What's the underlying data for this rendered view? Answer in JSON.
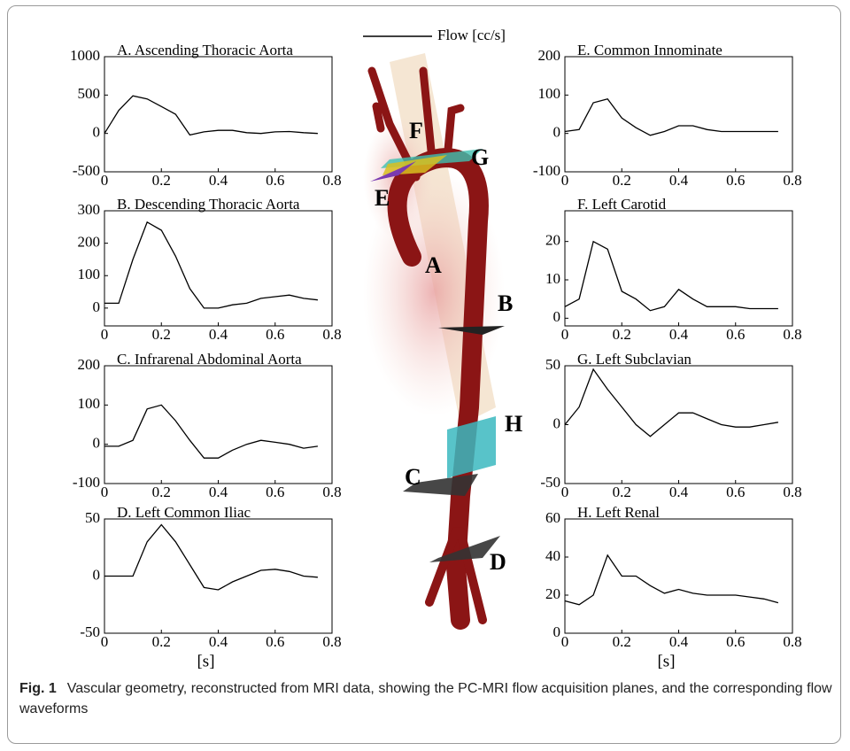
{
  "legend": {
    "label": "Flow [cc/s]",
    "color": "#000000"
  },
  "image_labels": [
    "A",
    "B",
    "C",
    "D",
    "E",
    "F",
    "G",
    "H"
  ],
  "caption": {
    "label": "Fig. 1",
    "text": "Vascular geometry, reconstructed from MRI data, showing the PC-MRI flow acquisition planes, and the corresponding flow waveforms"
  },
  "chart_data": [
    {
      "type": "line",
      "title": "A. Ascending Thoracic Aorta",
      "x": [
        0,
        0.05,
        0.1,
        0.15,
        0.2,
        0.25,
        0.3,
        0.35,
        0.4,
        0.45,
        0.5,
        0.55,
        0.6,
        0.65,
        0.7,
        0.75
      ],
      "series": [
        {
          "color": "#000000",
          "values": [
            0,
            300,
            490,
            450,
            350,
            250,
            -20,
            20,
            40,
            40,
            10,
            0,
            20,
            25,
            10,
            0
          ]
        }
      ],
      "xlim": [
        0,
        0.8
      ],
      "xticks": [
        0,
        0.2,
        0.4,
        0.6,
        0.8
      ],
      "ylim": [
        -500,
        1000
      ],
      "yticks": [
        -500,
        0,
        500,
        1000
      ]
    },
    {
      "type": "line",
      "title": "B. Descending Thoracic Aorta",
      "x": [
        0,
        0.05,
        0.1,
        0.15,
        0.2,
        0.25,
        0.3,
        0.35,
        0.4,
        0.45,
        0.5,
        0.55,
        0.6,
        0.65,
        0.7,
        0.75
      ],
      "series": [
        {
          "color": "#000000",
          "values": [
            15,
            15,
            150,
            265,
            240,
            160,
            60,
            0,
            0,
            10,
            15,
            30,
            35,
            40,
            30,
            25
          ]
        }
      ],
      "xlim": [
        0,
        0.8
      ],
      "xticks": [
        0,
        0.2,
        0.4,
        0.6,
        0.8
      ],
      "ylim": [
        -55,
        300
      ],
      "yticks": [
        0,
        100,
        200,
        300
      ]
    },
    {
      "type": "line",
      "title": "C. Infrarenal Abdominal Aorta",
      "x": [
        0,
        0.05,
        0.1,
        0.15,
        0.2,
        0.25,
        0.3,
        0.35,
        0.4,
        0.45,
        0.5,
        0.55,
        0.6,
        0.65,
        0.7,
        0.75
      ],
      "series": [
        {
          "color": "#000000",
          "values": [
            -5,
            -5,
            10,
            90,
            100,
            60,
            10,
            -35,
            -35,
            -15,
            0,
            10,
            5,
            0,
            -10,
            -5
          ]
        }
      ],
      "xlim": [
        0,
        0.8
      ],
      "xticks": [
        0,
        0.2,
        0.4,
        0.6,
        0.8
      ],
      "ylim": [
        -100,
        200
      ],
      "yticks": [
        -100,
        0,
        100,
        200
      ]
    },
    {
      "type": "line",
      "title": "D. Left Common Iliac",
      "xlabel": "[s]",
      "x": [
        0,
        0.05,
        0.1,
        0.15,
        0.2,
        0.25,
        0.3,
        0.35,
        0.4,
        0.45,
        0.5,
        0.55,
        0.6,
        0.65,
        0.7,
        0.75
      ],
      "series": [
        {
          "color": "#000000",
          "values": [
            0,
            0,
            0,
            30,
            45,
            30,
            10,
            -10,
            -12,
            -5,
            0,
            5,
            6,
            4,
            0,
            -1
          ]
        }
      ],
      "xlim": [
        0,
        0.8
      ],
      "xticks": [
        0,
        0.2,
        0.4,
        0.6,
        0.8
      ],
      "ylim": [
        -50,
        50
      ],
      "yticks": [
        -50,
        0,
        50
      ]
    },
    {
      "type": "line",
      "title": "E. Common Innominate",
      "x": [
        0,
        0.05,
        0.1,
        0.15,
        0.2,
        0.25,
        0.3,
        0.35,
        0.4,
        0.45,
        0.5,
        0.55,
        0.6,
        0.65,
        0.7,
        0.75
      ],
      "series": [
        {
          "color": "#000000",
          "values": [
            5,
            10,
            80,
            90,
            40,
            15,
            -5,
            5,
            20,
            20,
            10,
            5,
            5,
            5,
            5,
            5
          ]
        }
      ],
      "xlim": [
        0,
        0.8
      ],
      "xticks": [
        0,
        0.2,
        0.4,
        0.6,
        0.8
      ],
      "ylim": [
        -100,
        200
      ],
      "yticks": [
        -100,
        0,
        100,
        200
      ]
    },
    {
      "type": "line",
      "title": "F. Left Carotid",
      "x": [
        0,
        0.05,
        0.1,
        0.15,
        0.2,
        0.25,
        0.3,
        0.35,
        0.4,
        0.45,
        0.5,
        0.55,
        0.6,
        0.65,
        0.7,
        0.75
      ],
      "series": [
        {
          "color": "#000000",
          "values": [
            3,
            5,
            20,
            18,
            7,
            5,
            2,
            3,
            7.5,
            5,
            3,
            3,
            3,
            2.5,
            2.5,
            2.5
          ]
        }
      ],
      "xlim": [
        0,
        0.8
      ],
      "xticks": [
        0,
        0.2,
        0.4,
        0.6,
        0.8
      ],
      "ylim": [
        -2,
        28
      ],
      "yticks": [
        0,
        10,
        20
      ]
    },
    {
      "type": "line",
      "title": "G. Left Subclavian",
      "x": [
        0,
        0.05,
        0.1,
        0.15,
        0.2,
        0.25,
        0.3,
        0.35,
        0.4,
        0.45,
        0.5,
        0.55,
        0.6,
        0.65,
        0.7,
        0.75
      ],
      "series": [
        {
          "color": "#000000",
          "values": [
            0,
            15,
            47,
            30,
            15,
            0,
            -10,
            0,
            10,
            10,
            5,
            0,
            -2,
            -2,
            0,
            2
          ]
        }
      ],
      "xlim": [
        0,
        0.8
      ],
      "xticks": [
        0,
        0.2,
        0.4,
        0.6,
        0.8
      ],
      "ylim": [
        -50,
        50
      ],
      "yticks": [
        -50,
        0,
        50
      ]
    },
    {
      "type": "line",
      "title": "H. Left Renal",
      "xlabel": "[s]",
      "x": [
        0,
        0.05,
        0.1,
        0.15,
        0.2,
        0.25,
        0.3,
        0.35,
        0.4,
        0.45,
        0.5,
        0.55,
        0.6,
        0.65,
        0.7,
        0.75
      ],
      "series": [
        {
          "color": "#000000",
          "values": [
            17,
            15,
            20,
            41,
            30,
            30,
            25,
            21,
            23,
            21,
            20,
            20,
            20,
            19,
            18,
            16
          ]
        }
      ],
      "xlim": [
        0,
        0.8
      ],
      "xticks": [
        0,
        0.2,
        0.4,
        0.6,
        0.8
      ],
      "ylim": [
        0,
        60
      ],
      "yticks": [
        0,
        20,
        40,
        60
      ]
    }
  ]
}
